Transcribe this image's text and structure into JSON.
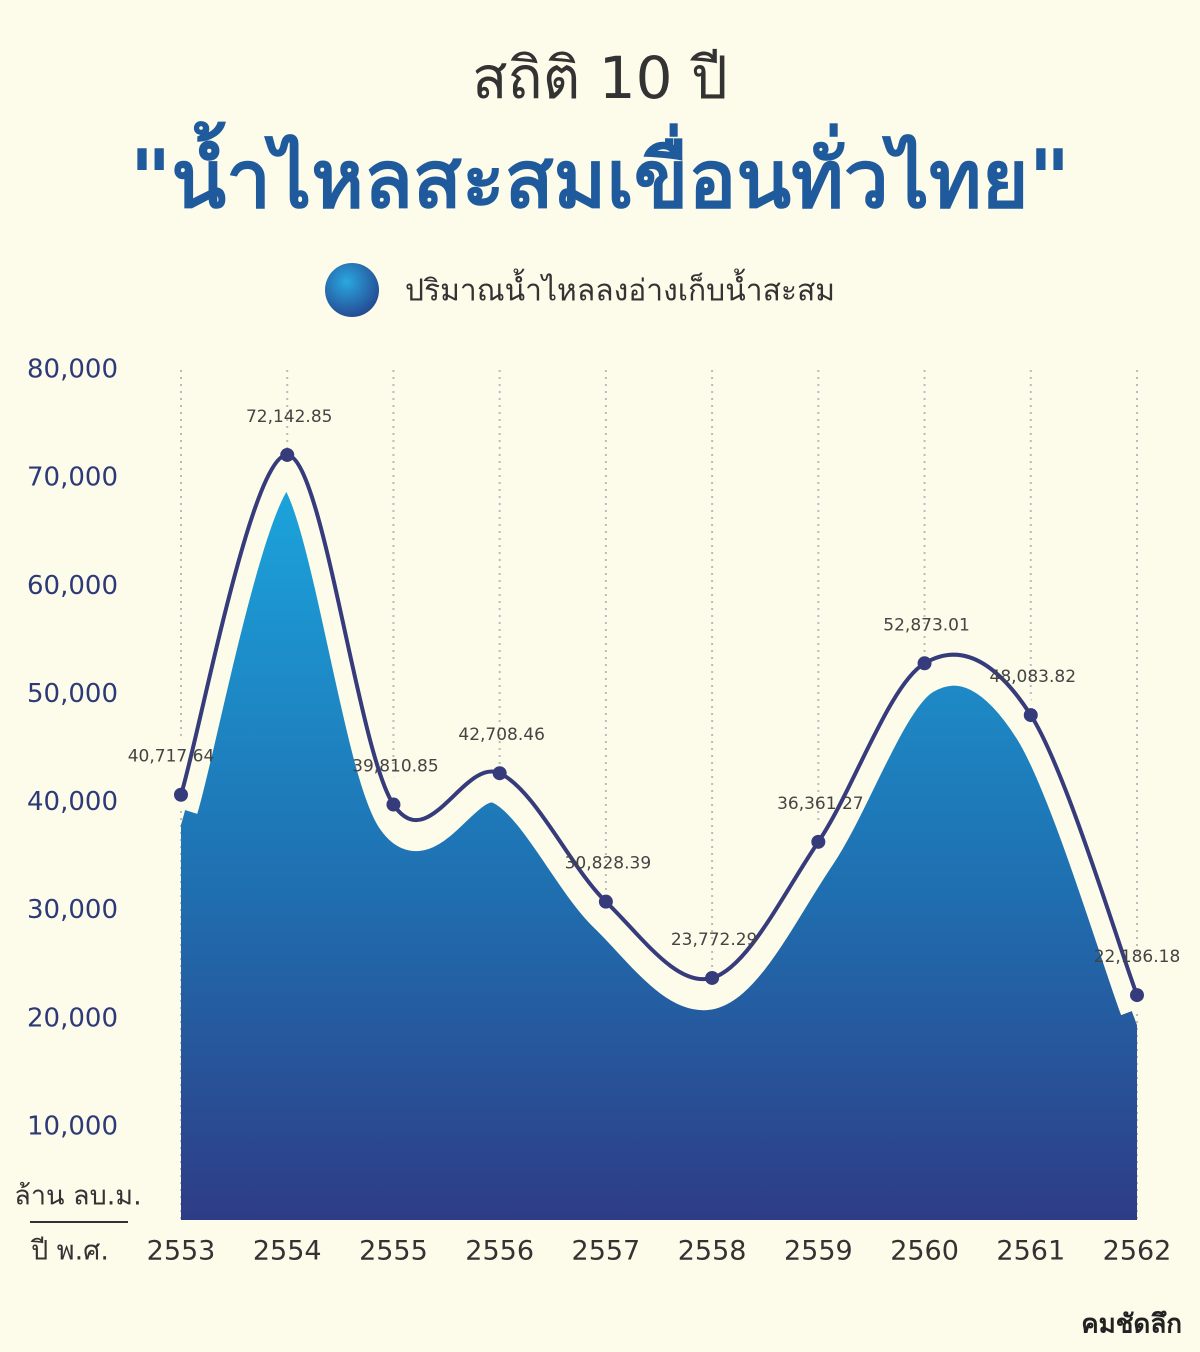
{
  "chart_data": {
    "type": "line",
    "title": "สถิติ 10 ปี",
    "subtitle": "\"น้ำไหลสะสมเขื่อนทั่วไทย\"",
    "y_axis_label": "ล้าน ลบ.ม.",
    "x_axis_label": "ปี พ.ศ.",
    "source": "คมชัดลึก",
    "categories": [
      "2553",
      "2554",
      "2555",
      "2556",
      "2557",
      "2558",
      "2559",
      "2560",
      "2561",
      "2562"
    ],
    "series": [
      {
        "name": "ปริมาณน้ำไหลลงอ่างเก็บน้ำสะสม",
        "color": "#363b7c",
        "values": [
          40717.64,
          72142.85,
          39810.85,
          42708.46,
          30828.39,
          23772.29,
          36361.27,
          52873.01,
          48083.82,
          22186.18
        ],
        "value_labels": [
          "40,717.64",
          "72,142.85",
          "39,810.85",
          "42,708.46",
          "30,828.39",
          "23,772.29",
          "36,361.27",
          "52,873.01",
          "48,083.82",
          "22,186.18"
        ]
      }
    ],
    "ylim": [
      0,
      80000
    ],
    "yticks": [
      {
        "value": 10000,
        "label": "10,000"
      },
      {
        "value": 20000,
        "label": "20,000"
      },
      {
        "value": 30000,
        "label": "30,000"
      },
      {
        "value": 40000,
        "label": "40,000"
      },
      {
        "value": 50000,
        "label": "50,000"
      },
      {
        "value": 60000,
        "label": "60,000"
      },
      {
        "value": 70000,
        "label": "70,000"
      },
      {
        "value": 80000,
        "label": "80,000"
      }
    ],
    "grid": true
  }
}
